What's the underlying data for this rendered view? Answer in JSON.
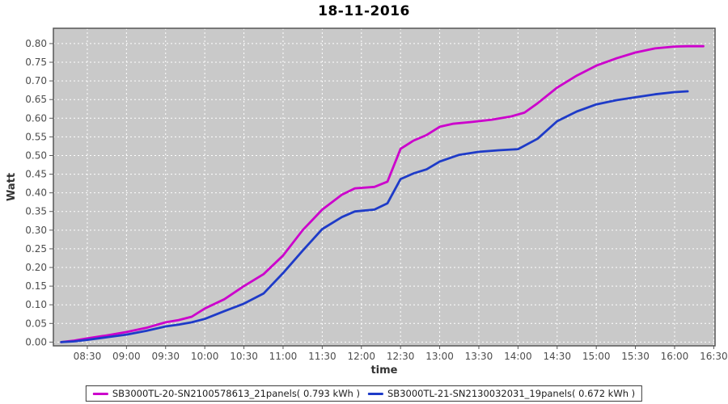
{
  "chart_data": {
    "type": "line",
    "title": "18-11-2016",
    "xlabel": "time",
    "ylabel": "Watt",
    "legend_position": "bottom",
    "grid": "on",
    "plot_background": "#c9c9c9",
    "grid_color": "#ffffff",
    "border_color": "#575757",
    "tick_text_color": "#4d4d4d",
    "axis_label_color": "#333333",
    "x_domain": [
      "08:04",
      "16:31"
    ],
    "ylim": [
      -0.01,
      0.841
    ],
    "x_ticks": [
      "08:30",
      "09:00",
      "09:30",
      "10:00",
      "10:30",
      "11:00",
      "11:30",
      "12:00",
      "12:30",
      "13:00",
      "13:30",
      "14:00",
      "14:30",
      "15:00",
      "15:30",
      "16:00",
      "16:30"
    ],
    "y_ticks": [
      "0.00",
      "0.05",
      "0.10",
      "0.15",
      "0.20",
      "0.25",
      "0.30",
      "0.35",
      "0.40",
      "0.45",
      "0.50",
      "0.55",
      "0.60",
      "0.65",
      "0.70",
      "0.75",
      "0.80"
    ],
    "series": [
      {
        "name": "SB3000TL-20-SN2100578613_21panels( 0.793 kWh )",
        "color": "#cc00cc",
        "total_kwh": 0.793,
        "points": [
          [
            "08:10",
            0.0
          ],
          [
            "08:20",
            0.004
          ],
          [
            "08:30",
            0.01
          ],
          [
            "08:45",
            0.018
          ],
          [
            "09:00",
            0.027
          ],
          [
            "09:15",
            0.038
          ],
          [
            "09:30",
            0.053
          ],
          [
            "09:40",
            0.059
          ],
          [
            "09:50",
            0.068
          ],
          [
            "10:00",
            0.09
          ],
          [
            "10:15",
            0.115
          ],
          [
            "10:30",
            0.15
          ],
          [
            "10:45",
            0.182
          ],
          [
            "11:00",
            0.232
          ],
          [
            "11:15",
            0.3
          ],
          [
            "11:30",
            0.355
          ],
          [
            "11:45",
            0.395
          ],
          [
            "11:55",
            0.412
          ],
          [
            "12:10",
            0.416
          ],
          [
            "12:20",
            0.43
          ],
          [
            "12:30",
            0.518
          ],
          [
            "12:40",
            0.54
          ],
          [
            "12:50",
            0.555
          ],
          [
            "13:00",
            0.577
          ],
          [
            "13:10",
            0.585
          ],
          [
            "13:25",
            0.59
          ],
          [
            "13:40",
            0.596
          ],
          [
            "13:55",
            0.605
          ],
          [
            "14:05",
            0.615
          ],
          [
            "14:15",
            0.64
          ],
          [
            "14:30",
            0.682
          ],
          [
            "14:45",
            0.714
          ],
          [
            "15:00",
            0.741
          ],
          [
            "15:15",
            0.76
          ],
          [
            "15:30",
            0.776
          ],
          [
            "15:45",
            0.787
          ],
          [
            "16:00",
            0.792
          ],
          [
            "16:10",
            0.793
          ],
          [
            "16:22",
            0.793
          ]
        ]
      },
      {
        "name": "SB3000TL-21-SN2130032031_19panels( 0.672 kWh )",
        "color": "#1e3bc8",
        "total_kwh": 0.672,
        "points": [
          [
            "08:10",
            0.0
          ],
          [
            "08:20",
            0.002
          ],
          [
            "08:30",
            0.006
          ],
          [
            "08:45",
            0.013
          ],
          [
            "09:00",
            0.02
          ],
          [
            "09:15",
            0.03
          ],
          [
            "09:30",
            0.042
          ],
          [
            "09:40",
            0.047
          ],
          [
            "09:50",
            0.053
          ],
          [
            "10:00",
            0.062
          ],
          [
            "10:15",
            0.083
          ],
          [
            "10:30",
            0.103
          ],
          [
            "10:45",
            0.13
          ],
          [
            "11:00",
            0.185
          ],
          [
            "11:15",
            0.245
          ],
          [
            "11:30",
            0.303
          ],
          [
            "11:45",
            0.335
          ],
          [
            "11:55",
            0.35
          ],
          [
            "12:10",
            0.355
          ],
          [
            "12:20",
            0.372
          ],
          [
            "12:30",
            0.437
          ],
          [
            "12:40",
            0.452
          ],
          [
            "12:50",
            0.463
          ],
          [
            "13:00",
            0.484
          ],
          [
            "13:15",
            0.502
          ],
          [
            "13:30",
            0.51
          ],
          [
            "13:45",
            0.514
          ],
          [
            "14:00",
            0.517
          ],
          [
            "14:15",
            0.545
          ],
          [
            "14:30",
            0.592
          ],
          [
            "14:45",
            0.618
          ],
          [
            "15:00",
            0.637
          ],
          [
            "15:15",
            0.648
          ],
          [
            "15:30",
            0.656
          ],
          [
            "15:45",
            0.664
          ],
          [
            "16:00",
            0.67
          ],
          [
            "16:10",
            0.672
          ]
        ]
      }
    ]
  }
}
